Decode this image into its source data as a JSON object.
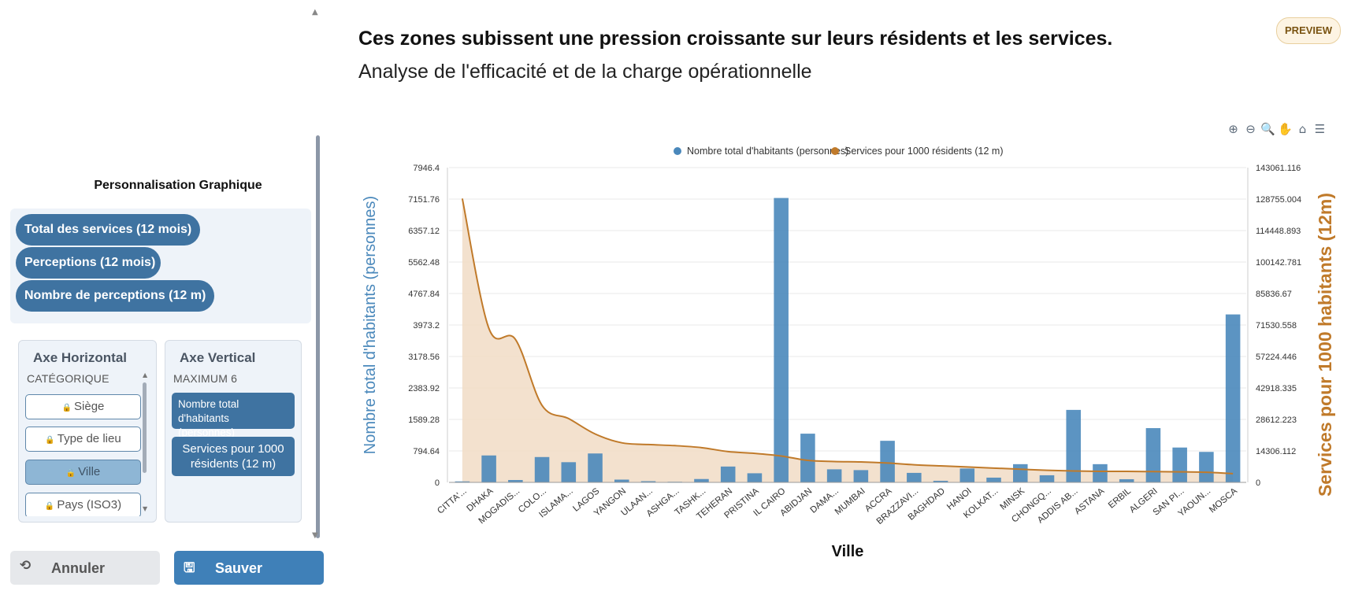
{
  "sidebar": {
    "title": "Personnalisation Graphique",
    "pills": [
      "Total des services (12 mois)",
      "Perceptions (12 mois)",
      "Nombre de perceptions (12 m)"
    ],
    "horizontal_axis": {
      "title": "Axe Horizontal",
      "subtitle": "CATÉGORIQUE",
      "items": [
        "Siège",
        "Type de lieu",
        "Ville",
        "Pays (ISO3)"
      ],
      "selected": "Ville"
    },
    "vertical_axis": {
      "title": "Axe Vertical",
      "subtitle": "MAXIMUM 6",
      "items": [
        "Nombre total d'habitants (personnes)",
        "Services pour 1000 résidents (12 m)"
      ]
    },
    "cancel_label": "Annuler",
    "save_label": "Sauver"
  },
  "header": {
    "title": "Ces zones subissent une pression croissante sur leurs résidents et les services.",
    "subtitle": "Analyse de l'efficacité et de la charge opérationnelle",
    "badge": "PREVIEW"
  },
  "toolbar": {
    "icons": [
      "zoom-in-icon",
      "zoom-out-icon",
      "selection-zoom-icon",
      "pan-hand-icon",
      "home-icon",
      "menu-icon"
    ]
  },
  "colors": {
    "bar": "#4a88bb",
    "line": "#c07a2a",
    "area": "#f1dcc5",
    "left_axis_title": "#4a88bb",
    "right_axis_title": "#c07a2a",
    "accent": "#3f73a1"
  },
  "chart_data": {
    "type": "bar",
    "title": "",
    "xlabel": "Ville",
    "ylabel": "Nombre total d'habitants (personnes)",
    "y2label": "Services pour 1000 habitants (12m)",
    "categories": [
      "CITTA'...",
      "DHAKA",
      "MOGADIS...",
      "COLO...",
      "ISLAMA...",
      "LAGOS",
      "YANGON",
      "ULAAN...",
      "ASHGA...",
      "TASHK...",
      "TEHERAN",
      "PRISTINA",
      "IL CAIRO",
      "ABIDJAN",
      "DAMA...",
      "MUMBAI",
      "ACCRA",
      "BRAZZAVI...",
      "BAGHDAD",
      "HANOI",
      "KOLKAT...",
      "MINSK",
      "CHONGQ...",
      "ADDIS AB...",
      "ASTANA",
      "ERBIL",
      "ALGERI",
      "SAN PI...",
      "YAOUN...",
      "MOSCA"
    ],
    "ylim": [
      0,
      7946.4
    ],
    "y_ticks": [
      "0",
      "794.64",
      "1589.28",
      "2383.92",
      "3178.56",
      "3973.2",
      "4767.84",
      "5562.48",
      "6357.12",
      "7151.76",
      "7946.4"
    ],
    "y2lim": [
      0,
      143061.116
    ],
    "y2_ticks": [
      "0",
      "14306.112",
      "28612.223",
      "42918.335",
      "57224.446",
      "71530.558",
      "85836.67",
      "100142.781",
      "114448.893",
      "128755.004",
      "143061.116"
    ],
    "legend_position": "top-center",
    "grid": true,
    "series": [
      {
        "name": "Nombre total d'habitants (personnes)",
        "type": "bar",
        "axis": "left",
        "values": [
          25,
          680,
          60,
          640,
          510,
          730,
          70,
          30,
          15,
          85,
          400,
          230,
          7180,
          1230,
          330,
          310,
          1050,
          240,
          40,
          350,
          120,
          460,
          180,
          1830,
          460,
          80,
          1370,
          880,
          770,
          4240
        ]
      },
      {
        "name": "Services pour 1000 résidents (12 m)",
        "type": "area",
        "axis": "right",
        "values": [
          129000,
          70000,
          65000,
          35000,
          29000,
          22000,
          18000,
          17200,
          16700,
          15800,
          14000,
          13200,
          12000,
          10000,
          9500,
          9300,
          8800,
          8000,
          7500,
          7000,
          6500,
          6000,
          5500,
          5200,
          5000,
          5000,
          4900,
          4800,
          4600,
          4000
        ]
      }
    ]
  }
}
